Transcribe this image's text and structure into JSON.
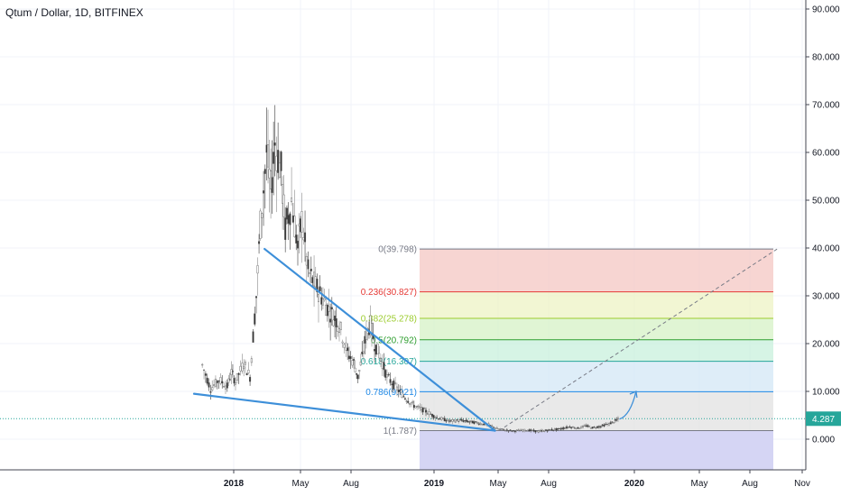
{
  "header": {
    "title": "Qtum / Dollar, 1D, BITFINEX"
  },
  "chart_data": {
    "type": "candlestick",
    "title": "Qtum / Dollar, 1D, BITFINEX",
    "x_tick_labels": [
      "2018",
      "May",
      "Aug",
      "2019",
      "May",
      "Aug",
      "2020",
      "May",
      "Aug",
      "Nov"
    ],
    "y_tick_labels": [
      "90.000",
      "80.000",
      "70.000",
      "60.000",
      "50.000",
      "40.000",
      "30.000",
      "20.000",
      "10.000",
      "0.000"
    ],
    "y_ticks": [
      90,
      80,
      70,
      60,
      50,
      40,
      30,
      20,
      10,
      0
    ],
    "ylim": [
      -6.5,
      92.5
    ],
    "last_price": {
      "label": "4.287",
      "value": 4.287,
      "color": "#26a69a"
    },
    "fibonacci": {
      "levels": [
        {
          "label": "0(39.798)",
          "value": 39.798,
          "color": "#787b86",
          "fill": "#f4c7c3"
        },
        {
          "label": "0.236(30.827)",
          "value": 30.827,
          "color": "#e53935",
          "fill": "#eef3c4"
        },
        {
          "label": "0.382(25.278)",
          "value": 25.278,
          "color": "#9ccc2e",
          "fill": "#d6f1c6"
        },
        {
          "label": "0.5(20.792)",
          "value": 20.792,
          "color": "#2e9e2e",
          "fill": "#c8f0dc"
        },
        {
          "label": "0.618(16.307)",
          "value": 16.307,
          "color": "#26a69a",
          "fill": "#d3e7f6"
        },
        {
          "label": "0.786(9.921)",
          "value": 9.921,
          "color": "#1e88e5",
          "fill": "#e2e2e2"
        },
        {
          "label": "1(1.787)",
          "value": 1.787,
          "color": "#787b86",
          "fill": "#d3d3f3"
        }
      ]
    },
    "price_path": [
      [
        14,
        15.5
      ],
      [
        18,
        10.5
      ],
      [
        22,
        12.5
      ],
      [
        26,
        11
      ],
      [
        28,
        14
      ],
      [
        30,
        12
      ],
      [
        34,
        16
      ],
      [
        37,
        13
      ],
      [
        40,
        30
      ],
      [
        42,
        45
      ],
      [
        45,
        60
      ],
      [
        47,
        52
      ],
      [
        49,
        62
      ],
      [
        52,
        56
      ],
      [
        54,
        44
      ],
      [
        57,
        50
      ],
      [
        60,
        40
      ],
      [
        62,
        46
      ],
      [
        65,
        35
      ],
      [
        70,
        31
      ],
      [
        75,
        27
      ],
      [
        80,
        24
      ],
      [
        84,
        18
      ],
      [
        87,
        16
      ],
      [
        89,
        13
      ],
      [
        91,
        17
      ],
      [
        93,
        22
      ],
      [
        95,
        24
      ],
      [
        97,
        20
      ],
      [
        100,
        17
      ],
      [
        103,
        13
      ],
      [
        107,
        11
      ],
      [
        111,
        9
      ],
      [
        116,
        7
      ],
      [
        121,
        6
      ],
      [
        127,
        4.5
      ],
      [
        133,
        3.8
      ],
      [
        139,
        3.9
      ],
      [
        145,
        3.5
      ],
      [
        152,
        3
      ],
      [
        156,
        2.2
      ],
      [
        160,
        1.9
      ],
      [
        164,
        1.7
      ],
      [
        170,
        1.9
      ],
      [
        176,
        1.6
      ],
      [
        181,
        1.9
      ],
      [
        186,
        2.1
      ],
      [
        191,
        2.6
      ],
      [
        195,
        2.3
      ],
      [
        199,
        2.8
      ],
      [
        202,
        2.4
      ],
      [
        206,
        2.7
      ],
      [
        210,
        3.2
      ],
      [
        213,
        3.8
      ],
      [
        215,
        4.3
      ]
    ],
    "trendlines": [
      {
        "name": "upper",
        "from": [
          44,
          39.798
        ],
        "to": [
          155,
          1.787
        ],
        "color": "#3d8fd9"
      },
      {
        "name": "lower",
        "from": [
          10,
          9.5
        ],
        "to": [
          155,
          1.787
        ],
        "color": "#3d8fd9"
      }
    ],
    "projection_arrow": {
      "from": [
        215,
        4.2
      ],
      "to": [
        223,
        10
      ],
      "color": "#3d8fd9"
    },
    "dashed_target": {
      "from": [
        157,
        1.787
      ],
      "to": [
        291,
        39.798
      ],
      "color": "#787b86"
    }
  }
}
